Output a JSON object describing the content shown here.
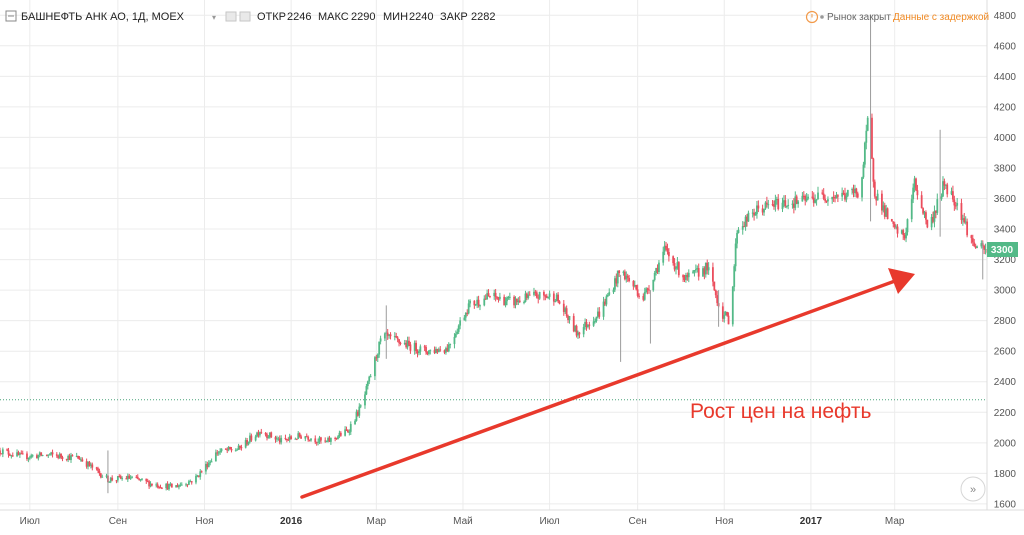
{
  "header": {
    "symbol": "БАШНЕФТЬ АНК АО, 1Д, MOEX",
    "open_label": "ОТКР",
    "open_value": "2246",
    "high_label": "МАКС",
    "high_value": "2290",
    "low_label": "МИН",
    "low_value": "2240",
    "close_label": "ЗАКР",
    "close_value": "2282",
    "market_status": "Рынок закрыт",
    "delay_notice": "Данные с задержкой"
  },
  "price_badge": "3300",
  "annotation": {
    "text": "Рост цен на нефть"
  },
  "colors": {
    "up": "#53b987",
    "down": "#eb4d5c",
    "arrow": "#e8392c",
    "grid": "#ececec"
  },
  "chart_data": {
    "type": "candlestick",
    "x_axis": {
      "ticks": [
        "Июл",
        "Сен",
        "Ноя",
        "2016",
        "Мар",
        "Май",
        "Июл",
        "Сен",
        "Ноя",
        "2017",
        "Мар"
      ]
    },
    "y_axis": {
      "ticks": [
        1600,
        1800,
        2000,
        2200,
        2400,
        2600,
        2800,
        3000,
        3200,
        3400,
        3600,
        3800,
        4000,
        4200,
        4400,
        4600,
        4800
      ],
      "range": [
        1560,
        4900
      ]
    },
    "reference_line": 2282,
    "last_price": 3300,
    "x_domain": [
      "2015-06-10",
      "2017-05-05"
    ],
    "trend": [
      [
        "2015-06-10",
        1950
      ],
      [
        "2015-06-25",
        1910
      ],
      [
        "2015-07-15",
        1920
      ],
      [
        "2015-08-05",
        1900
      ],
      [
        "2015-08-25",
        1760
      ],
      [
        "2015-09-10",
        1770
      ],
      [
        "2015-09-25",
        1730
      ],
      [
        "2015-10-10",
        1710
      ],
      [
        "2015-10-25",
        1760
      ],
      [
        "2015-11-10",
        1940
      ],
      [
        "2015-11-25",
        1960
      ],
      [
        "2015-12-10",
        2080
      ],
      [
        "2015-12-25",
        2010
      ],
      [
        "2016-01-10",
        2050
      ],
      [
        "2016-01-25",
        2000
      ],
      [
        "2016-02-10",
        2080
      ],
      [
        "2016-02-20",
        2250
      ],
      [
        "2016-03-05",
        2700
      ],
      [
        "2016-03-20",
        2650
      ],
      [
        "2016-04-05",
        2600
      ],
      [
        "2016-04-20",
        2620
      ],
      [
        "2016-05-05",
        2900
      ],
      [
        "2016-05-20",
        2960
      ],
      [
        "2016-06-05",
        2920
      ],
      [
        "2016-06-20",
        2960
      ],
      [
        "2016-07-05",
        2960
      ],
      [
        "2016-07-20",
        2720
      ],
      [
        "2016-08-05",
        2850
      ],
      [
        "2016-08-20",
        3130
      ],
      [
        "2016-09-05",
        2950
      ],
      [
        "2016-09-20",
        3260
      ],
      [
        "2016-10-05",
        3070
      ],
      [
        "2016-10-20",
        3150
      ],
      [
        "2016-10-30",
        2850
      ],
      [
        "2016-11-05",
        2800
      ],
      [
        "2016-11-10",
        3400
      ],
      [
        "2016-11-25",
        3530
      ],
      [
        "2016-12-10",
        3570
      ],
      [
        "2016-12-25",
        3580
      ],
      [
        "2017-01-10",
        3620
      ],
      [
        "2017-01-25",
        3620
      ],
      [
        "2017-02-05",
        3650
      ],
      [
        "2017-02-10",
        4100
      ],
      [
        "2017-02-15",
        3650
      ],
      [
        "2017-02-28",
        3400
      ],
      [
        "2017-03-08",
        3350
      ],
      [
        "2017-03-15",
        3700
      ],
      [
        "2017-03-25",
        3400
      ],
      [
        "2017-04-05",
        3700
      ],
      [
        "2017-04-15",
        3550
      ],
      [
        "2017-04-25",
        3300
      ],
      [
        "2017-05-05",
        3250
      ]
    ],
    "spikes": [
      [
        "2015-08-25",
        1670,
        1950
      ],
      [
        "2016-03-08",
        2550,
        2900
      ],
      [
        "2016-08-20",
        2530,
        3100
      ],
      [
        "2016-09-10",
        2650,
        3000
      ],
      [
        "2016-10-28",
        2760,
        3000
      ],
      [
        "2017-02-12",
        3450,
        4800
      ],
      [
        "2017-04-02",
        3350,
        4050
      ],
      [
        "2017-05-02",
        3070,
        3320
      ]
    ]
  }
}
